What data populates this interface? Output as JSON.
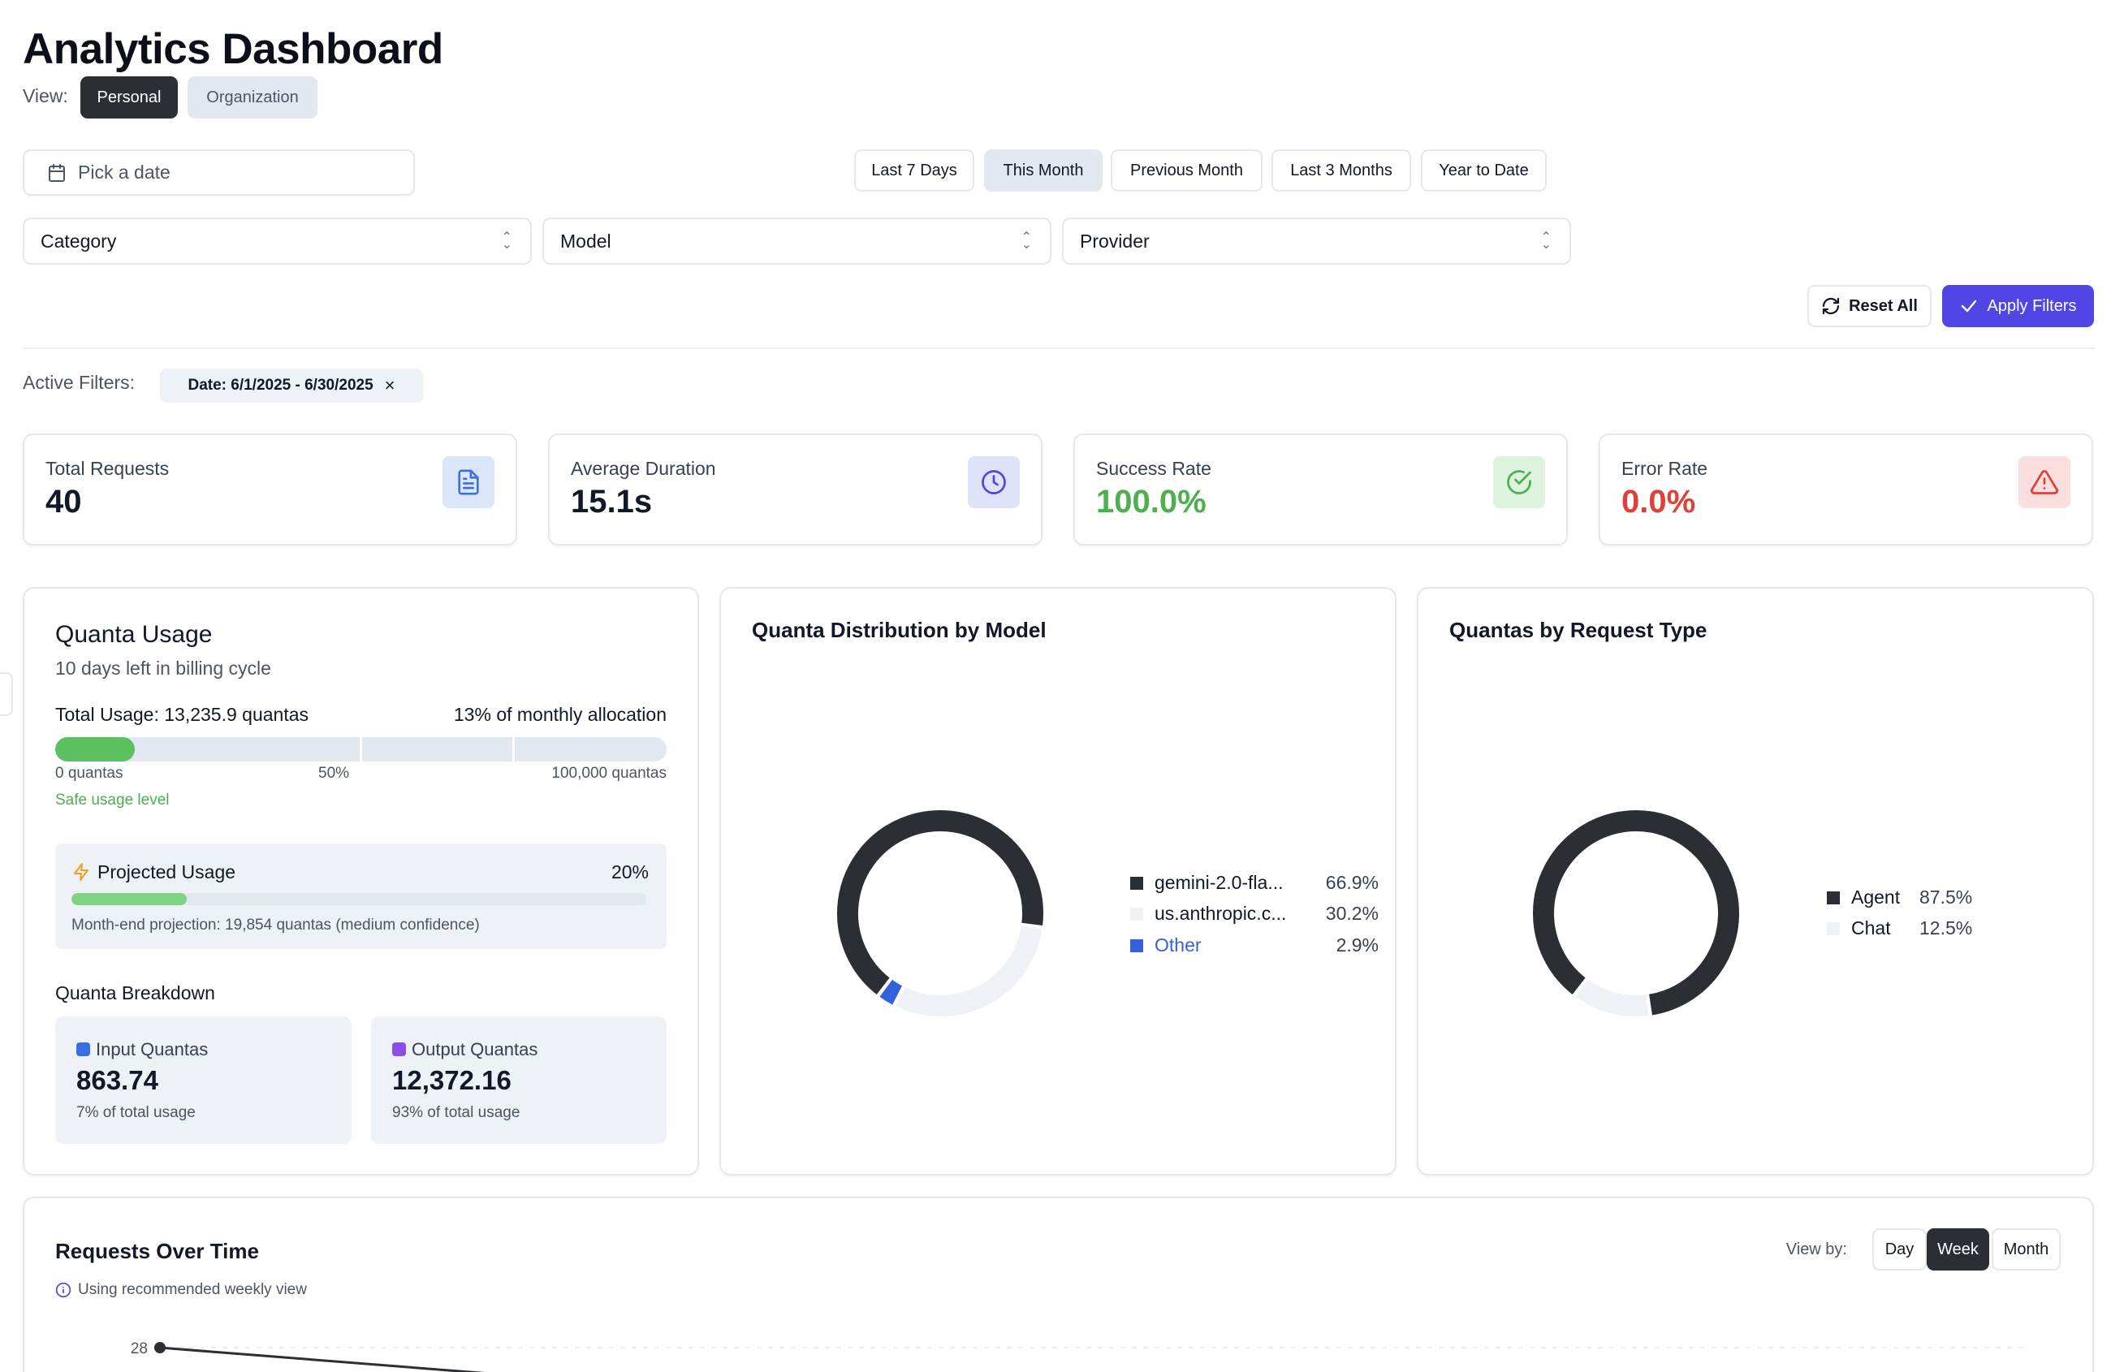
{
  "header": {
    "title": "Analytics Dashboard",
    "view_label": "View:",
    "view_options": [
      "Personal",
      "Organization"
    ],
    "view_selected": "Personal"
  },
  "filters": {
    "date_placeholder": "Pick a date",
    "ranges": [
      "Last 7 Days",
      "This Month",
      "Previous Month",
      "Last 3 Months",
      "Year to Date"
    ],
    "range_selected": "This Month",
    "selects": [
      "Category",
      "Model",
      "Provider"
    ],
    "reset_label": "Reset All",
    "apply_label": "Apply Filters",
    "active_label": "Active Filters:",
    "active_chip": "Date: 6/1/2025 - 6/30/2025"
  },
  "stats": [
    {
      "label": "Total Requests",
      "value": "40",
      "icon": "document-icon"
    },
    {
      "label": "Average Duration",
      "value": "15.1s",
      "icon": "clock-icon"
    },
    {
      "label": "Success Rate",
      "value": "100.0%",
      "icon": "check-circle-icon"
    },
    {
      "label": "Error Rate",
      "value": "0.0%",
      "icon": "warning-triangle-icon"
    }
  ],
  "quanta_usage": {
    "title": "Quanta Usage",
    "subtitle": "10 days left in billing cycle",
    "total_label": "Total Usage: 13,235.9 quantas",
    "allocation_label": "13% of monthly allocation",
    "usage_fraction": 0.13,
    "tick_min": "0 quantas",
    "tick_mid": "50%",
    "tick_max": "100,000 quantas",
    "status": "Safe usage level",
    "projected": {
      "title": "Projected Usage",
      "pct": "20%",
      "fraction": 0.2,
      "note": "Month-end projection: 19,854 quantas (medium confidence)"
    },
    "breakdown_title": "Quanta Breakdown",
    "breakdown": [
      {
        "label": "Input Quantas",
        "value": "863.74",
        "share": "7% of total usage",
        "color": "#3b6fe0"
      },
      {
        "label": "Output Quantas",
        "value": "12,372.16",
        "share": "93% of total usage",
        "color": "#8b4fe8"
      }
    ]
  },
  "chart_data": [
    {
      "type": "pie",
      "title": "Quanta Distribution by Model",
      "labels": [
        "gemini-2.0-fla...",
        "us.anthropic.c...",
        "Other"
      ],
      "values": [
        66.9,
        30.2,
        2.9
      ],
      "value_labels": [
        "66.9%",
        "30.2%",
        "2.9%"
      ],
      "colors": [
        "#2b2f33",
        "#eef2f7",
        "#3360dd"
      ]
    },
    {
      "type": "pie",
      "title": "Quantas by Request Type",
      "labels": [
        "Agent",
        "Chat"
      ],
      "values": [
        87.5,
        12.5
      ],
      "value_labels": [
        "87.5%",
        "12.5%"
      ],
      "colors": [
        "#2b2f33",
        "#eef2f7"
      ]
    },
    {
      "type": "line",
      "title": "Requests Over Time",
      "note": "Using recommended weekly view",
      "view_by_label": "View by:",
      "view_by_options": [
        "Day",
        "Week",
        "Month"
      ],
      "view_by_selected": "Week",
      "y_tick_labels": [
        "28"
      ],
      "series": [
        {
          "name": "Requests",
          "values": [
            28
          ]
        }
      ]
    }
  ]
}
